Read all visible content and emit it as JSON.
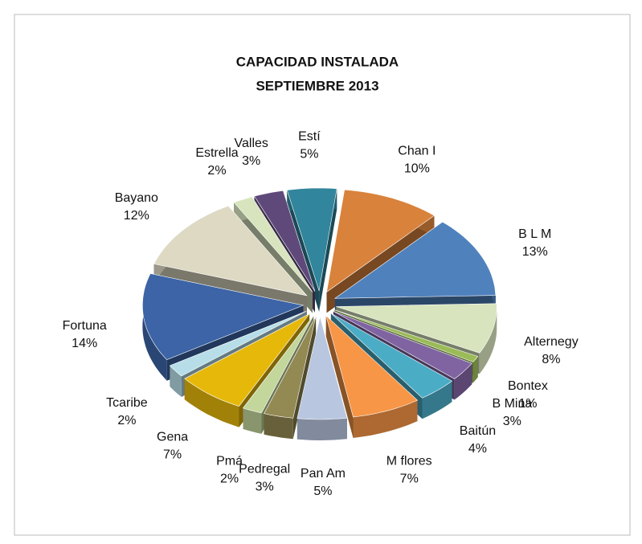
{
  "chart_data": {
    "type": "pie",
    "title": "CAPACIDAD INSTALADA",
    "subtitle": "SEPTIEMBRE 2013",
    "categories": [
      "Estí",
      "Chan I",
      "B L M",
      "Alternegy",
      "Bontex",
      "B Mina",
      "Baitún",
      "M flores",
      "Pan Am",
      "Pedregal",
      "Pmá",
      "Gena",
      "Tcaribe",
      "Fortuna",
      "Bayano",
      "Estrella",
      "Valles"
    ],
    "values": [
      5,
      10,
      13,
      8,
      1,
      3,
      4,
      7,
      5,
      3,
      2,
      7,
      2,
      14,
      12,
      2,
      3
    ],
    "value_labels": [
      "5%",
      "10%",
      "13%",
      "8%",
      "1%",
      "3%",
      "4%",
      "7%",
      "5%",
      "3%",
      "2%",
      "7%",
      "2%",
      "14%",
      "12%",
      "2%",
      "3%"
    ],
    "colors": [
      "#31859c",
      "#d9823c",
      "#4f81bd",
      "#d7e4bd",
      "#9bbb59",
      "#8064a2",
      "#4bacc6",
      "#f79646",
      "#b9c6e0",
      "#938953",
      "#c3d69b",
      "#e6b80a",
      "#b7dee8",
      "#3c64a6",
      "#ddd9c3",
      "#d7e4bd",
      "#5f497a"
    ]
  }
}
